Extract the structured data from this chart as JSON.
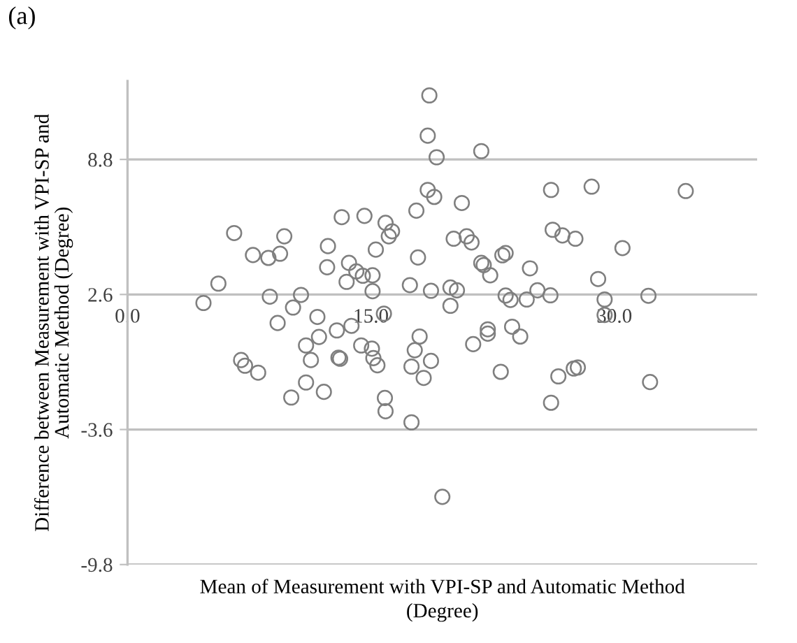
{
  "chart_data": {
    "type": "scatter",
    "title": "(a)",
    "xlabel": "Mean of Measurement with VPI-SP and Automatic Method\n(Degree)",
    "ylabel": "Difference between Measurement with VPI-SP and\nAutomatic Method (Degree)",
    "xlim": [
      0,
      38.8
    ],
    "ylim": [
      -9.8,
      12.4
    ],
    "xticks": [
      {
        "value": 0,
        "label": "0.0"
      },
      {
        "value": 15,
        "label": "15.0"
      },
      {
        "value": 30,
        "label": "30.0"
      }
    ],
    "yticks": [
      -9.8,
      -3.6,
      2.6,
      8.8
    ],
    "grid": "y",
    "marker": "circle",
    "legend": false,
    "series": [
      {
        "color": "#7f7f7f",
        "x": [
          6.57,
          5.6,
          4.68,
          7.73,
          8.68,
          9.4,
          9.66,
          8.77,
          10.69,
          10.2,
          9.25,
          11.7,
          12.35,
          12.3,
          13.2,
          14.6,
          13.65,
          13.5,
          14.1,
          14.5,
          15.1,
          15.3,
          15.9,
          16.1,
          16.3,
          15.1,
          15.8,
          11.8,
          11.0,
          12.9,
          13.8,
          14.4,
          15.06,
          7.0,
          7.24,
          8.05,
          10.09,
          11.0,
          12.1,
          11.3,
          13.0,
          13.1,
          15.15,
          15.4,
          15.86,
          15.9,
          18.6,
          18.5,
          19.05,
          21.8,
          18.5,
          18.9,
          20.6,
          17.8,
          17.9,
          20.1,
          20.9,
          21.2,
          21.8,
          21.95,
          22.35,
          23.1,
          23.3,
          24.8,
          26.1,
          26.2,
          26.8,
          27.6,
          28.6,
          30.5,
          34.4,
          29.0,
          29.4,
          29.4,
          32.1,
          26.06,
          25.26,
          24.6,
          23.3,
          23.6,
          19.9,
          20.3,
          19.9,
          18.7,
          17.4,
          22.2,
          22.2,
          21.3,
          23.7,
          24.2,
          18.0,
          17.7,
          18.7,
          17.5,
          18.25,
          17.5,
          19.4,
          23.0,
          26.55,
          26.1,
          27.5,
          27.75,
          32.2
        ],
        "values": [
          5.42,
          3.1,
          2.21,
          4.41,
          4.28,
          4.47,
          5.27,
          2.5,
          2.58,
          2.0,
          1.29,
          1.57,
          4.82,
          3.85,
          6.15,
          6.21,
          4.05,
          3.18,
          3.66,
          3.46,
          3.48,
          4.66,
          5.89,
          5.27,
          5.5,
          2.75,
          1.72,
          0.65,
          0.26,
          0.95,
          1.16,
          0.26,
          0.11,
          -0.41,
          -0.67,
          -0.99,
          -2.13,
          -1.44,
          -1.87,
          -0.41,
          -0.3,
          -0.35,
          -0.32,
          -0.65,
          -2.15,
          -2.76,
          11.74,
          9.89,
          8.9,
          9.18,
          7.4,
          7.08,
          6.8,
          6.45,
          4.3,
          5.16,
          5.27,
          4.99,
          4.05,
          3.95,
          3.48,
          4.4,
          4.5,
          3.8,
          7.4,
          5.57,
          5.31,
          5.16,
          7.55,
          4.73,
          7.35,
          3.31,
          2.37,
          1.66,
          2.54,
          2.56,
          2.79,
          2.37,
          2.55,
          2.35,
          2.92,
          2.79,
          2.08,
          2.77,
          3.03,
          1.0,
          0.8,
          0.32,
          1.12,
          0.67,
          0.67,
          0.04,
          -0.45,
          -0.71,
          -1.23,
          -3.27,
          -6.69,
          -0.95,
          -1.16,
          -2.37,
          -0.8,
          -0.75,
          -1.42
        ]
      }
    ]
  }
}
